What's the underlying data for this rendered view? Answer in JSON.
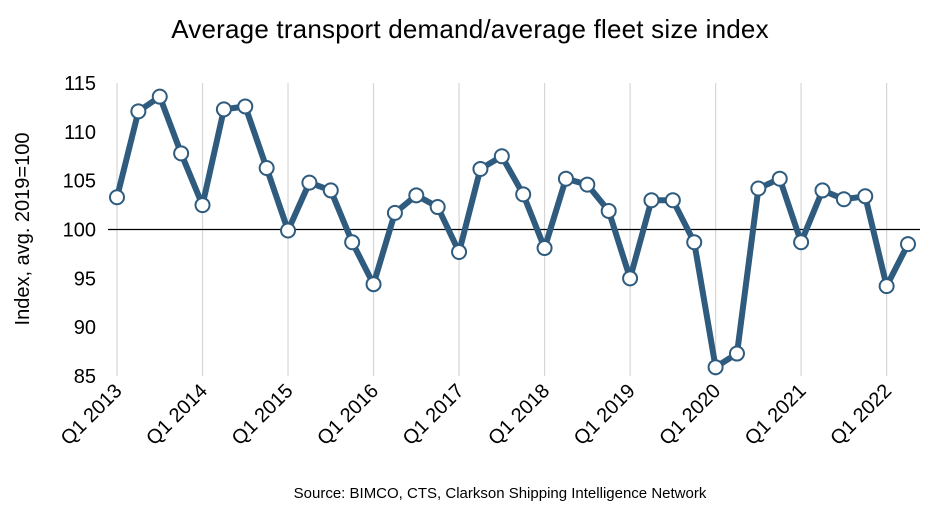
{
  "chart_data": {
    "type": "line",
    "title": "Average transport demand/average fleet size index",
    "ylabel": "Index, avg. 2019=100",
    "xlabel": "",
    "source": "Source: BIMCO, CTS, Clarkson Shipping Intelligence Network",
    "ylim": [
      85,
      115
    ],
    "yticks": [
      85,
      90,
      95,
      100,
      105,
      110,
      115
    ],
    "reference_line": 100,
    "grid": "vertical",
    "x_tick_labels": [
      "Q1 2013",
      "Q1 2014",
      "Q1 2015",
      "Q1 2016",
      "Q1 2017",
      "Q1 2018",
      "Q1 2019",
      "Q1 2020",
      "Q1 2021",
      "Q1 2022"
    ],
    "x": [
      "Q1 2013",
      "Q2 2013",
      "Q3 2013",
      "Q4 2013",
      "Q1 2014",
      "Q2 2014",
      "Q3 2014",
      "Q4 2014",
      "Q1 2015",
      "Q2 2015",
      "Q3 2015",
      "Q4 2015",
      "Q1 2016",
      "Q2 2016",
      "Q3 2016",
      "Q4 2016",
      "Q1 2017",
      "Q2 2017",
      "Q3 2017",
      "Q4 2017",
      "Q1 2018",
      "Q2 2018",
      "Q3 2018",
      "Q4 2018",
      "Q1 2019",
      "Q2 2019",
      "Q3 2019",
      "Q4 2019",
      "Q1 2020",
      "Q2 2020",
      "Q3 2020",
      "Q4 2020",
      "Q1 2021",
      "Q2 2021",
      "Q3 2021",
      "Q4 2021",
      "Q1 2022",
      "Q2 2022"
    ],
    "series": [
      {
        "values": [
          103.3,
          112.1,
          113.6,
          107.8,
          102.5,
          112.3,
          112.6,
          106.3,
          99.9,
          104.8,
          104.0,
          98.7,
          94.4,
          101.7,
          103.5,
          102.3,
          97.7,
          106.2,
          107.5,
          103.6,
          98.1,
          105.2,
          104.6,
          101.9,
          95.0,
          103.0,
          103.0,
          98.7,
          85.9,
          87.3,
          104.2,
          105.2,
          98.7,
          104.0,
          103.1,
          103.4,
          94.2,
          98.5
        ]
      }
    ],
    "colors": {
      "line": "#2e5b7e",
      "marker_fill": "#ffffff",
      "grid": "#d6d6d6",
      "reference": "#000000"
    }
  }
}
